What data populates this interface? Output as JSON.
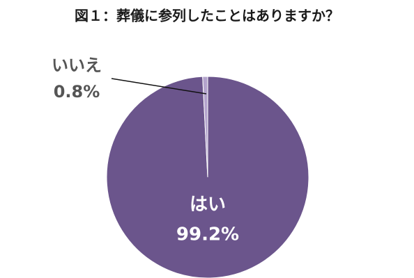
{
  "chart_data": {
    "type": "pie",
    "title": "図１：葬儀に参列したことはありますか？",
    "categories": [
      "はい",
      "いいえ"
    ],
    "values": [
      99.2,
      0.8
    ],
    "value_labels": [
      "99.2%",
      "0.8%"
    ],
    "colors": [
      "#6b558c",
      "#b3a3cc"
    ]
  }
}
